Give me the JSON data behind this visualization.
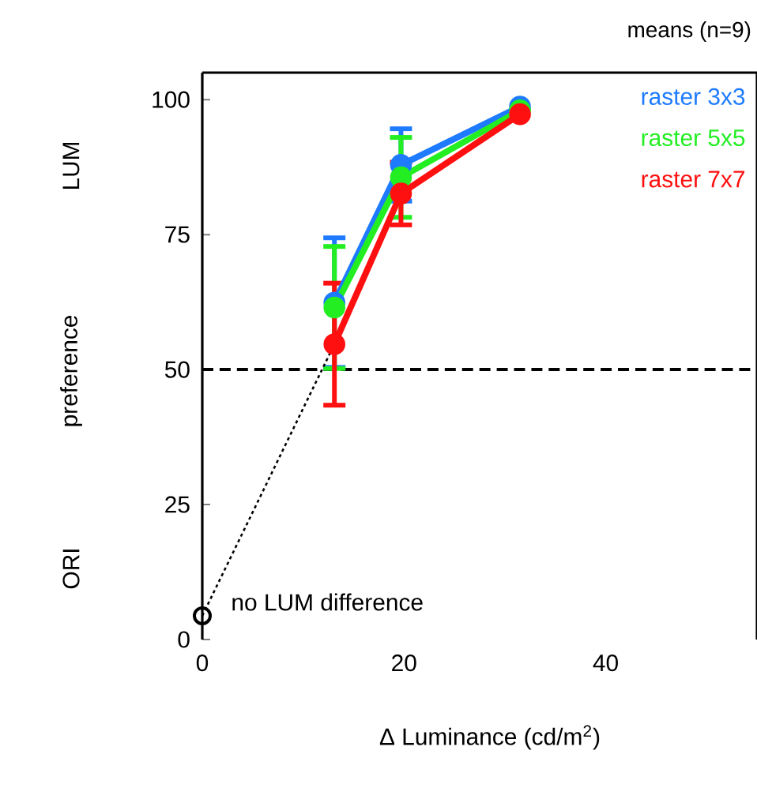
{
  "chart_data": {
    "type": "line",
    "xlabel": "Δ Luminance (cd/m$^{2}$)",
    "ylabel": "preference",
    "xlim": [
      0,
      55
    ],
    "ylim": [
      0,
      105
    ],
    "xticks": [
      0,
      20,
      40
    ],
    "yticks": [
      0,
      25,
      50,
      75,
      100
    ],
    "marker": "circle",
    "legend": "top right",
    "series": [
      {
        "name": "raster 3x3",
        "color": "#1e7bff",
        "x": [
          13.1,
          19.7,
          31.5
        ],
        "values": [
          62.4,
          87.9,
          98.7
        ],
        "errors": [
          12,
          6.7,
          null
        ]
      },
      {
        "name": "raster 5x5",
        "color": "#22ee22",
        "x": [
          13.1,
          19.7,
          31.5
        ],
        "values": [
          61.5,
          85.6,
          98
        ],
        "errors": [
          11.3,
          7.4,
          null
        ]
      },
      {
        "name": "raster 7x7",
        "color": "#ff1010",
        "x": [
          13.1,
          19.7,
          31.5
        ],
        "values": [
          54.7,
          82.6,
          97.3
        ],
        "errors": [
          11.3,
          5.8,
          null
        ]
      },
      {
        "type": "line",
        "color": "#000000",
        "line_style": "dotted",
        "marker": "circle",
        "x": [
          0,
          13.1
        ],
        "values": [
          4.4,
          54.7
        ]
      }
    ],
    "ref_lines": [
      {
        "axis": "y",
        "value": 50,
        "color": "#000000",
        "line_style": "dashed"
      }
    ],
    "annotations": [
      "means (n=9)",
      "LUM",
      "ORI",
      {
        "text": "no LUM difference",
        "x": 0,
        "y": 4.4
      }
    ]
  }
}
